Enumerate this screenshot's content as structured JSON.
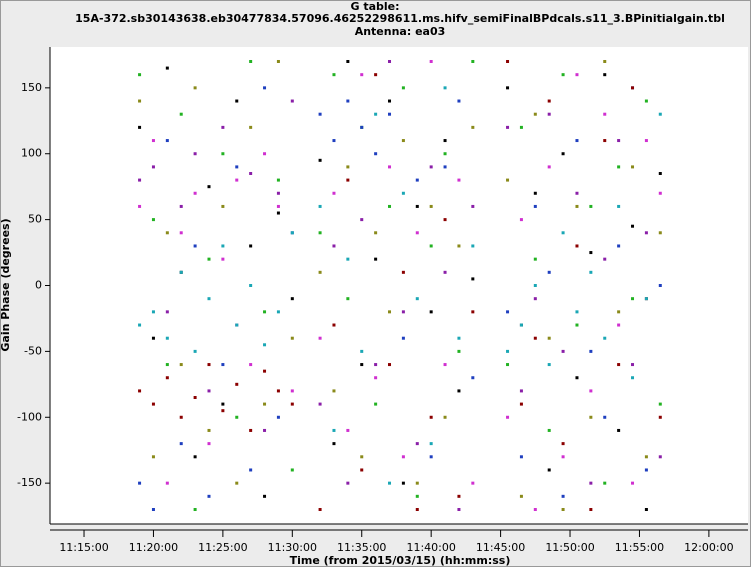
{
  "chart_data": {
    "type": "scatter",
    "title": "G table:",
    "subtitle": "15A-372.sb30143638.eb30477834.57096.46252298611.ms.hifv_semiFinalBPdcals.s11_3.BPinitialgain.tbl",
    "annotation": "Antenna: ea03",
    "x_label": "Time (from 2015/03/15) (hh:mm:ss)",
    "y_label": "Gain Phase (degrees)",
    "xlim": [
      "11:12:33",
      "12:02:49"
    ],
    "xticks": [
      "11:15:00",
      "11:20:00",
      "11:25:00",
      "11:30:00",
      "11:35:00",
      "11:40:00",
      "11:45:00",
      "11:50:00",
      "11:55:00",
      "12:00:00"
    ],
    "ylim": [
      -181,
      181
    ],
    "yticks": [
      -150,
      -100,
      -50,
      0,
      50,
      100,
      150
    ],
    "grid": false,
    "x": [
      "11:19:00",
      "11:20:00",
      "11:21:00",
      "11:22:00",
      "11:23:00",
      "11:24:00",
      "11:25:00",
      "11:26:00",
      "11:27:00",
      "11:28:00",
      "11:29:00",
      "11:30:00",
      "11:32:00",
      "11:33:00",
      "11:34:00",
      "11:35:00",
      "11:36:00",
      "11:37:00",
      "11:38:00",
      "11:39:00",
      "11:40:00",
      "11:41:00",
      "11:42:00",
      "11:43:00",
      "11:45:30",
      "11:46:30",
      "11:47:30",
      "11:48:30",
      "11:49:30",
      "11:50:30",
      "11:51:30",
      "11:52:30",
      "11:53:30",
      "11:54:30",
      "11:55:30",
      "11:56:30"
    ],
    "series": [
      {
        "color": "#000000",
        "values": [
          120,
          -40,
          165,
          10,
          -130,
          75,
          -90,
          140,
          30,
          -160,
          55,
          -10,
          95,
          -120,
          170,
          -60,
          20,
          140,
          -150,
          60,
          -20,
          110,
          -80,
          5,
          150,
          -30,
          70,
          -140,
          100,
          -70,
          25,
          160,
          -110,
          45,
          -170,
          85
        ]
      },
      {
        "color": "#22b222",
        "values": [
          160,
          50,
          -60,
          130,
          -170,
          20,
          100,
          -100,
          170,
          -20,
          80,
          -140,
          40,
          160,
          -10,
          120,
          -90,
          60,
          150,
          -160,
          30,
          100,
          -50,
          170,
          -60,
          120,
          20,
          -110,
          160,
          -30,
          60,
          -150,
          90,
          -10,
          140,
          -90
        ]
      },
      {
        "color": "#1f3fbf",
        "values": [
          -150,
          -170,
          110,
          -120,
          30,
          -160,
          -60,
          90,
          -140,
          150,
          -100,
          40,
          130,
          110,
          140,
          120,
          100,
          130,
          -40,
          80,
          -130,
          90,
          140,
          -70,
          -20,
          -130,
          60,
          10,
          -160,
          110,
          -50,
          -100,
          30,
          150,
          -140,
          0
        ]
      },
      {
        "color": "#8a1fa8",
        "values": [
          80,
          90,
          -20,
          60,
          100,
          -80,
          120,
          -30,
          85,
          -110,
          70,
          140,
          -90,
          30,
          -150,
          50,
          -60,
          170,
          -20,
          -120,
          90,
          10,
          -170,
          60,
          120,
          -80,
          -10,
          130,
          -50,
          70,
          -150,
          20,
          110,
          -60,
          40,
          -130
        ]
      },
      {
        "color": "#8b0000",
        "values": [
          -80,
          -90,
          -70,
          -100,
          -85,
          -60,
          -95,
          -75,
          -110,
          -65,
          -80,
          -90,
          -170,
          -30,
          80,
          -140,
          160,
          -60,
          10,
          -170,
          -100,
          50,
          -160,
          -20,
          170,
          -90,
          -40,
          140,
          -120,
          30,
          -170,
          110,
          -60,
          150,
          -10,
          -100
        ]
      },
      {
        "color": "#1aa7b5",
        "values": [
          -30,
          -20,
          -40,
          10,
          -50,
          -10,
          30,
          -30,
          0,
          -45,
          -20,
          40,
          60,
          -110,
          20,
          -50,
          130,
          -150,
          70,
          -10,
          -120,
          150,
          -40,
          30,
          -50,
          -30,
          0,
          -60,
          40,
          -20,
          10,
          -40,
          60,
          -70,
          -10,
          130
        ]
      },
      {
        "color": "#8a8a1a",
        "values": [
          140,
          -130,
          40,
          -60,
          150,
          -110,
          60,
          -150,
          120,
          -90,
          170,
          -40,
          10,
          -80,
          90,
          -130,
          40,
          -20,
          110,
          -150,
          60,
          -100,
          30,
          120,
          80,
          -160,
          130,
          -40,
          -170,
          60,
          -100,
          170,
          -20,
          90,
          -130,
          40
        ]
      },
      {
        "color": "#d02fd0",
        "values": [
          60,
          110,
          -150,
          40,
          70,
          -120,
          20,
          80,
          -60,
          100,
          60,
          -80,
          -40,
          70,
          -110,
          160,
          -70,
          90,
          -130,
          40,
          170,
          -60,
          80,
          -150,
          -100,
          50,
          -170,
          90,
          -130,
          160,
          -80,
          130,
          -30,
          -150,
          110,
          70
        ]
      }
    ]
  }
}
